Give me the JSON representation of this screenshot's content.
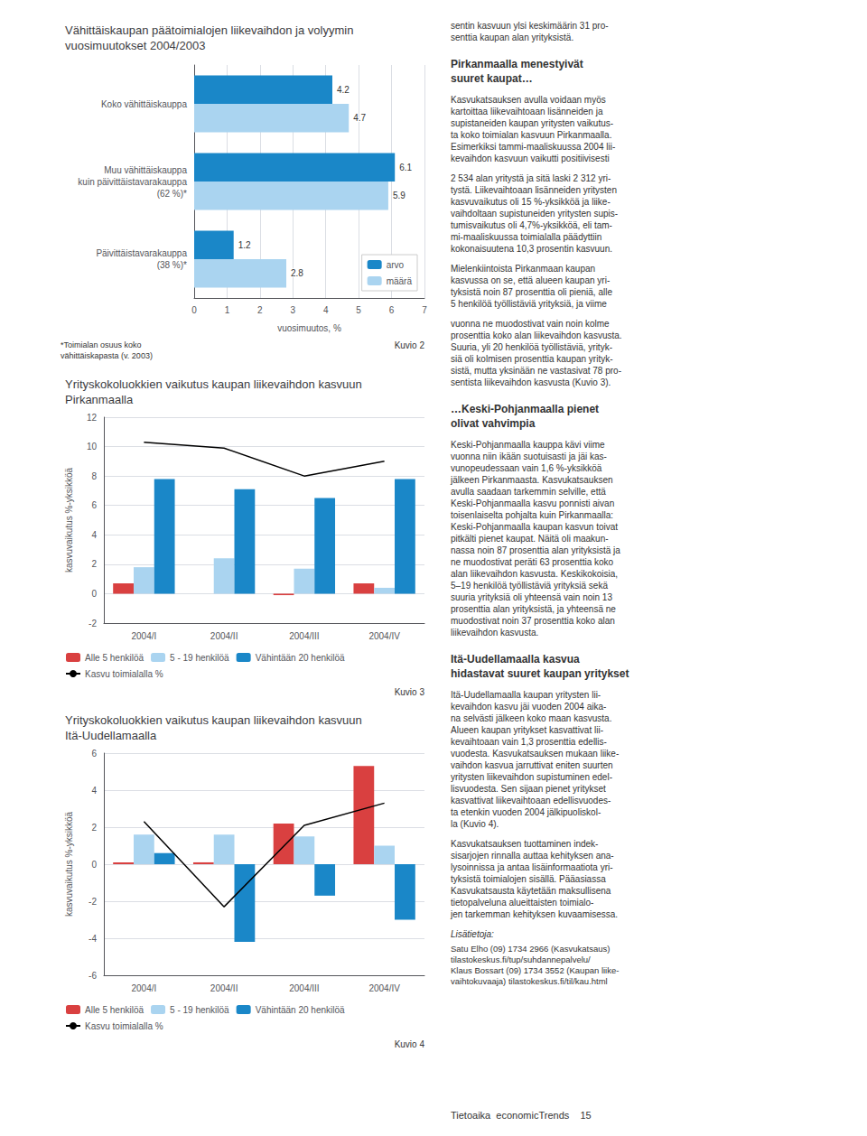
{
  "chart_data": [
    {
      "type": "bar",
      "orientation": "horizontal",
      "title": "Vähittäiskaupan päätoimialojen liikevaihdon ja volyymin\nvuosimuutokset 2004/2003",
      "categories": [
        "Koko vähittäiskauppa",
        "Muu vähittäiskauppa\nkuin päivittäistavarakauppa\n(62 %)*",
        "Päivittäistavarakauppa\n(38 %)*"
      ],
      "series": [
        {
          "name": "arvo",
          "color": "#1a87c8",
          "values": [
            4.2,
            6.1,
            1.2
          ]
        },
        {
          "name": "määrä",
          "color": "#aad4f0",
          "values": [
            4.7,
            5.9,
            2.8
          ]
        }
      ],
      "xlabel": "vuosimuutos, %",
      "xlim": [
        0,
        7
      ],
      "xticks": [
        0,
        1,
        2,
        3,
        4,
        5,
        6,
        7
      ],
      "grid": true,
      "legend": "lower right",
      "data_labels": true,
      "annotations": [
        "*Toimialan osuus koko\nvähittäiskapasta (v. 2003)",
        "Kuvio 2"
      ]
    },
    {
      "type": "bar",
      "title": "Yrityskokoluokkien vaikutus kaupan liikevaihdon kasvuun\nPirkanmaalla",
      "categories": [
        "2004/I",
        "2004/II",
        "2004/III",
        "2004/IV"
      ],
      "series": [
        {
          "name": "Alle 5 henkilöä",
          "color": "#d94040",
          "values": [
            0.7,
            0.0,
            -0.1,
            0.7
          ]
        },
        {
          "name": "5 - 19 henkilöä",
          "color": "#aad4f0",
          "values": [
            1.8,
            2.4,
            1.7,
            0.4
          ]
        },
        {
          "name": "Vähintään 20 henkilöä",
          "color": "#1a87c8",
          "values": [
            7.8,
            7.1,
            6.5,
            7.8
          ]
        },
        {
          "name": "Kasvu toimialalla %",
          "type": "line",
          "color": "#000000",
          "values": [
            10.3,
            9.9,
            8.0,
            9.0
          ]
        }
      ],
      "ylabel": "kasvuvaikutus %-yksikköä",
      "ylim": [
        -2,
        12
      ],
      "yticks": [
        -2,
        0,
        2,
        4,
        6,
        8,
        10,
        12
      ],
      "grid": true,
      "legend": "bottom",
      "annotations": [
        "Kuvio 3"
      ]
    },
    {
      "type": "bar",
      "title": "Yrityskokoluokkien vaikutus kaupan liikevaihdon kasvuun\nItä-Uudellamaalla",
      "categories": [
        "2004/I",
        "2004/II",
        "2004/III",
        "2004/IV"
      ],
      "series": [
        {
          "name": "Alle 5 henkilöä",
          "color": "#d94040",
          "values": [
            0.1,
            0.1,
            2.2,
            5.3
          ]
        },
        {
          "name": "5 - 19 henkilöä",
          "color": "#aad4f0",
          "values": [
            1.6,
            1.6,
            1.5,
            1.0
          ]
        },
        {
          "name": "Vähintään 20 henkilöä",
          "color": "#1a87c8",
          "values": [
            0.6,
            -4.2,
            -1.7,
            -3.0
          ]
        },
        {
          "name": "Kasvu toimialalla %",
          "type": "line",
          "color": "#000000",
          "values": [
            2.3,
            -2.3,
            2.1,
            3.3
          ]
        }
      ],
      "ylabel": "kasvuvaikutus %-yksikköä",
      "ylim": [
        -6,
        6
      ],
      "yticks": [
        -6,
        -4,
        -2,
        0,
        2,
        4,
        6
      ],
      "grid": true,
      "legend": "bottom",
      "annotations": [
        "Kuvio 4"
      ]
    }
  ],
  "page_texts": {
    "para_a": "sentin kasvuun ylsi keskimäärin 31 pro-\nsenttia kaupan alan yrityksistä.",
    "subhead": "Pirkanmaalla menestyivät\nsuuret kaupat…",
    "para_b": "Kasvukatsauksen avulla voidaan myös\nkartoittaa liikevaihtoaan lisänneiden ja\nsupistaneiden kaupan yritysten vaikutus-\nta koko toimialan kasvuun Pirkanmaalla.\nEsimerkiksi tammi-maaliskuussa 2004 lii-\nkevaihdon kasvuun vaikutti positiivisesti",
    "para_c": "2 534 alan yritystä ja sitä laski 2 312 yri-\ntystä. Liikevaihtoaan lisänneiden yritysten\nkasvuvaikutus oli 15 %-yksikköä ja liike-\nvaihdoltaan supistuneiden yritysten supis-\ntumisvaikutus oli 4,7%-yksikköä, eli tam-\nmi-maaliskuussa toimialalla päädyttiin\nkokonaisuutena 10,3 prosentin kasvuun.",
    "para_d": "Mielenkiintoista Pirkanmaan kaupan\nkasvussa on se, että alueen kaupan yri-\ntyksistä noin 87 prosenttia oli pieniä, alle\n5 henkilöä työllistäviä yrityksiä, ja viime",
    "top": "vuonna ne muodostivat vain noin kolme\nprosenttia koko alan liikevaihdon kasvusta.\nSuuria, yli 20 henkilöä työllistäviä, yrityk-\nsiä oli kolmisen prosenttia kaupan yrityk-\nsistä, mutta yksinään ne vastasivat 78 pro-\nsentista liikevaihdon kasvusta (Kuvio 3).",
    "subhead1": "…Keski-Pohjanmaalla pienet\nolivat vahvimpia",
    "para1": "Keski-Pohjanmaalla kauppa kävi viime\nvuonna niin ikään suotuisasti ja jäi kas-\nvunopeudessaan vain 1,6 %-yksikköä\njälkeen Pirkanmaasta. Kasvukatsauksen\navulla saadaan tarkemmin selville, että\nKeski-Pohjanmaalla kasvu ponnisti aivan\ntoisenlaiselta pohjalta kuin Pirkanmaalla:\nKeski-Pohjanmaalla kaupan kasvun toivat\npitkälti pienet kaupat. Näitä oli maakun-\nnassa noin 87 prosenttia alan yrityksistä ja\nne muodostivat peräti 63 prosenttia koko\nalan liikevaihdon kasvusta. Keskikokoisia,\n5–19 henkilöä työllistäviä yrityksiä sekä\nsuuria yrityksiä oli yhteensä vain noin 13\nprosenttia alan yrityksistä, ja yhteensä ne\nmuodostivat noin 37 prosenttia koko alan\nliikevaihdon kasvusta.",
    "subhead2": "Itä-Uudellamaalla kasvua\nhidastavat suuret kaupan yritykset",
    "para2": "Itä-Uudellamaalla kaupan yritysten lii-\nkevaihdon kasvu jäi vuoden 2004 aika-\nna selvästi jälkeen koko maan kasvusta.\nAlueen kaupan yritykset kasvattivat lii-\nkevaihtoaan vain 1,3 prosenttia edellis-\nvuodesta. Kasvukatsauksen mukaan liike-\nvaihdon kasvua jarruttivat eniten suurten\nyritysten liikevaihdon supistuminen edel-\nlisvuodesta. Sen sijaan pienet yritykset\nkasvattivat liikevaihtoaan edellisvuodes-\nta etenkin vuoden 2004 jälkipuoliskol-\nla (Kuvio 4).",
    "para3": "Kasvukatsauksen tuottaminen indek-\nsisarjojen rinnalla auttaa kehityksen ana-\nlysoinnissa ja antaa lisäinformaatiota yri-\ntyksistä toimialojen sisällä. Pääasiassa\nKasvukatsausta käytetään maksullisena\ntietopalveluna alueittaisten toimialo-\njen tarkemman kehityksen kuvaamisessa.",
    "footer_head": "Lisätietoja:",
    "footer": "Satu Elho (09) 1734 2966 (Kasvukatsaus)\ntilastokeskus.fi/tup/suhdannepalvelu/\nKlaus Bossart (09) 1734 3552 (Kaupan liike-\nvaihtokuvaaja) tilastokeskus.fi/til/kau.html",
    "page_footer": "Tietoaika  economicTrends    15"
  }
}
